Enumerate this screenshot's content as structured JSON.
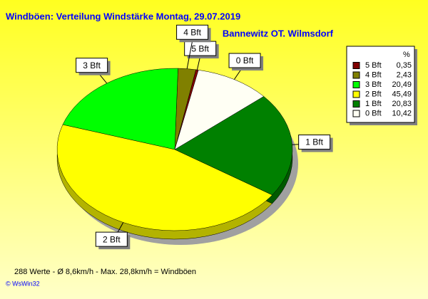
{
  "chart_data": {
    "type": "pie",
    "title": "Windböen: Verteilung Windstärke  Montag, 29.07.2019",
    "subtitle": "Bannewitz OT. Wilmsdorf",
    "legend_title": "%",
    "categories": [
      "5 Bft",
      "4 Bft",
      "3 Bft",
      "2 Bft",
      "1 Bft",
      "0 Bft"
    ],
    "values": [
      0.35,
      2.43,
      20.49,
      45.49,
      20.83,
      10.42
    ],
    "value_labels": [
      "0,35",
      "2,43",
      "20,49",
      "45,49",
      "20,83",
      "10,42"
    ],
    "colors": [
      "#800000",
      "#808000",
      "#00ff00",
      "#ffff00",
      "#008000",
      "#fffff4"
    ],
    "footer": "288 Werte   -   Ø 8,6km/h   -   Max. 28,8km/h = Windböen",
    "copyright": "© WsWin32"
  }
}
